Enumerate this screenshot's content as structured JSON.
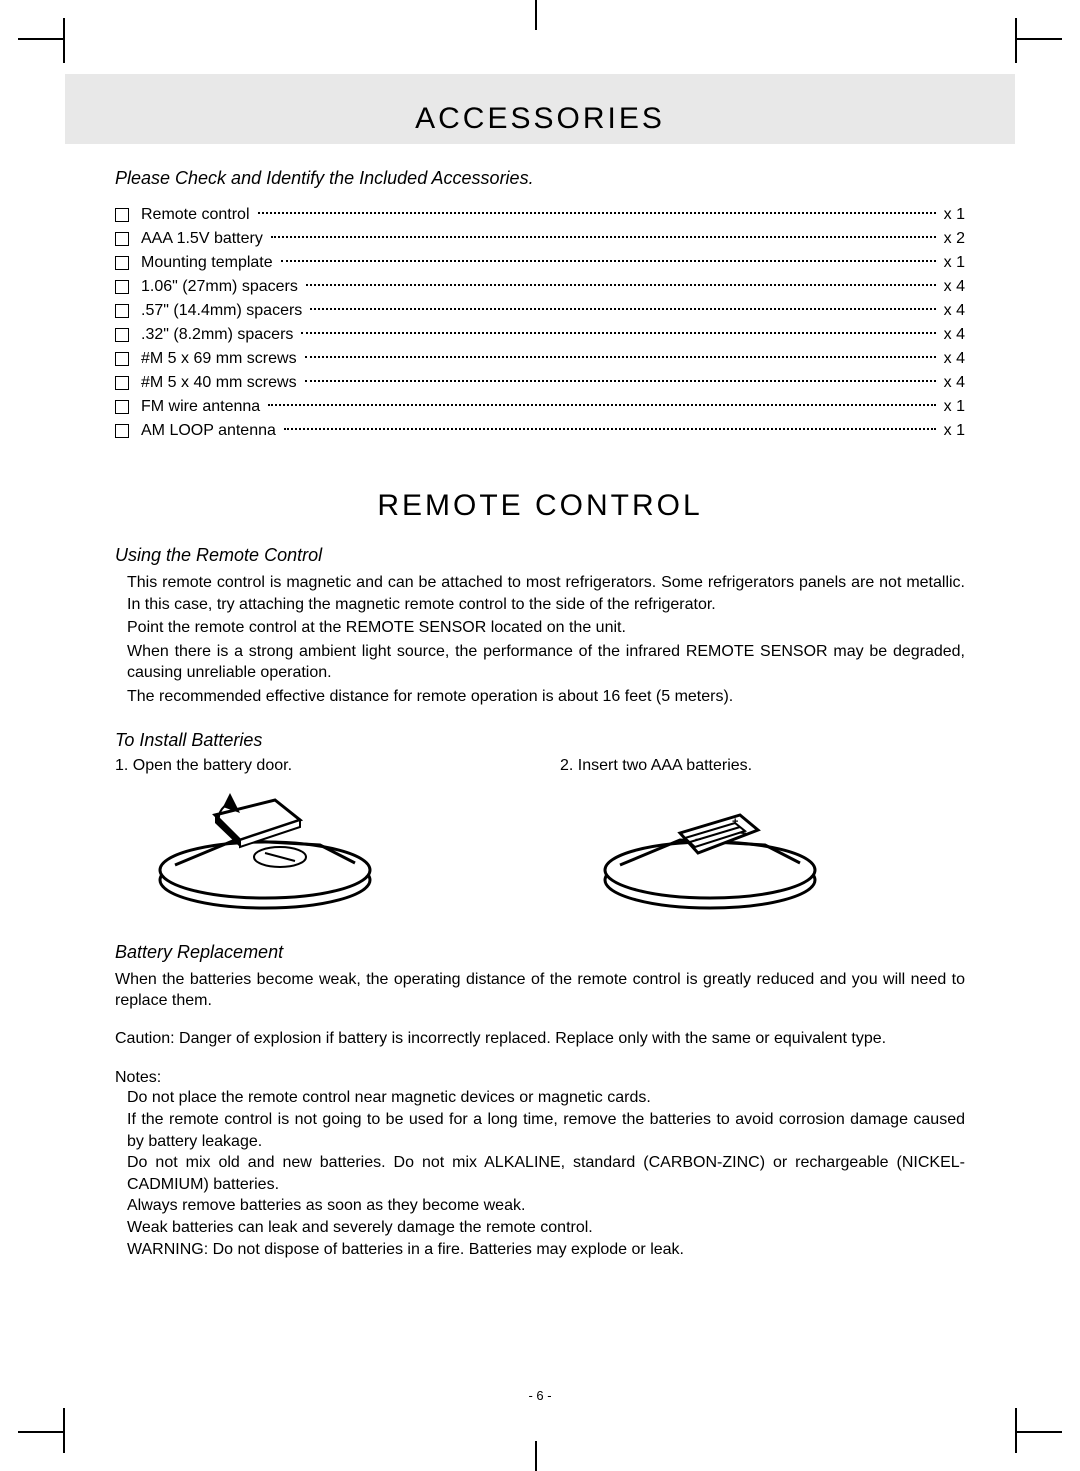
{
  "header": {
    "title": "ACCESSORIES"
  },
  "accessories": {
    "subtitle": "Please Check and Identify the Included Accessories.",
    "items": [
      {
        "name": "Remote control",
        "qty": "x 1"
      },
      {
        "name": "AAA 1.5V battery",
        "qty": "x 2"
      },
      {
        "name": "Mounting template",
        "qty": "x 1"
      },
      {
        "name": "1.06\" (27mm) spacers",
        "qty": "x 4"
      },
      {
        "name": ".57\" (14.4mm) spacers",
        "qty": "x 4"
      },
      {
        "name": ".32\" (8.2mm) spacers",
        "qty": "x 4"
      },
      {
        "name": "#M 5 x 69 mm screws",
        "qty": "x 4"
      },
      {
        "name": "#M 5 x 40 mm screws",
        "qty": "x 4"
      },
      {
        "name": "FM wire antenna",
        "qty": "x 1"
      },
      {
        "name": "AM LOOP antenna",
        "qty": "x 1"
      }
    ]
  },
  "remote": {
    "title": "REMOTE CONTROL",
    "using_heading": "Using the Remote Control",
    "using_p1": "This remote control is magnetic and can be attached to most refrigerators. Some refrigerators panels are not metallic. In this case, try attaching the magnetic remote control to the side of the refrigerator.",
    "using_p2": "Point the remote control at the REMOTE SENSOR located on the unit.",
    "using_p3": "When there is a strong ambient light source, the performance of the infrared REMOTE SENSOR may be degraded, causing unreliable operation.",
    "using_p4": "The recommended effective distance for remote operation is about 16 feet (5 meters).",
    "install_heading": "To Install Batteries",
    "step1": "1. Open the battery door.",
    "step2": "2. Insert two AAA batteries.",
    "replace_heading": "Battery Replacement",
    "replace_p1": "When the batteries become weak, the operating distance of the remote control is greatly reduced and you will need to replace them.",
    "replace_p2": "Caution: Danger of explosion if battery is incorrectly replaced. Replace only with the same or equivalent type.",
    "notes_heading": "Notes:",
    "notes": [
      "Do not place the remote control near magnetic devices or magnetic cards.",
      "If the remote control is not going to be used for a long time, remove the batteries to avoid corrosion damage caused by battery leakage.",
      "Do not mix old and new batteries. Do not mix ALKALINE, standard (CARBON-ZINC) or rechargeable (NICKEL-CADMIUM) batteries.",
      "Always remove batteries as soon as they become weak.",
      "Weak batteries can leak and severely damage the remote control.",
      "WARNING: Do not dispose of batteries in a fire. Batteries may explode or leak."
    ]
  },
  "page_number": "- 6 -"
}
